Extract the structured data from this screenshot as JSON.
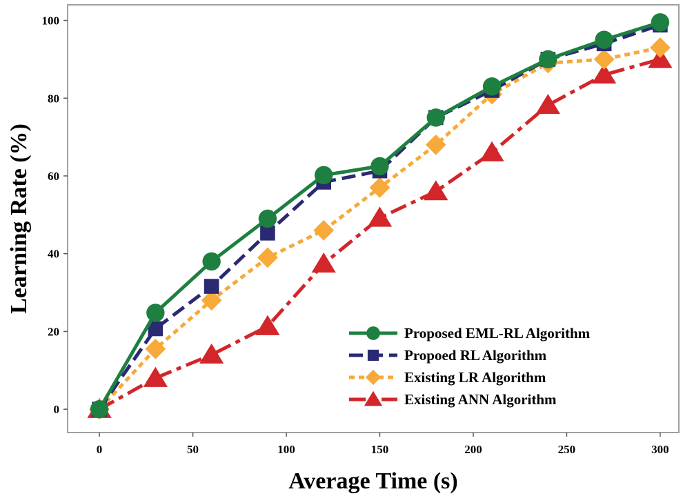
{
  "chart_data": {
    "type": "line",
    "title": "",
    "xlabel": "Average Time (s)",
    "ylabel": "Learning Rate (%)",
    "xlim": [
      -17,
      310
    ],
    "ylim": [
      -6,
      104
    ],
    "xticks": [
      0,
      50,
      100,
      150,
      200,
      250,
      300
    ],
    "yticks": [
      0,
      20,
      40,
      60,
      80,
      100
    ],
    "x": [
      0,
      30,
      60,
      90,
      120,
      150,
      180,
      210,
      240,
      270,
      300
    ],
    "legend_position": "bottom-right",
    "series": [
      {
        "name": "Proposed EML-RL Algorithm",
        "color": "#1e8040",
        "marker": "circle",
        "line_style": "solid",
        "values": [
          0,
          24.8,
          38,
          49,
          60.2,
          62.5,
          75,
          83,
          90,
          95,
          99.5
        ]
      },
      {
        "name": "Propoed RL Algorithm",
        "color": "#2a2a72",
        "marker": "square",
        "line_style": "dashed",
        "values": [
          0,
          20.7,
          31.6,
          45.3,
          58.4,
          61.3,
          75,
          82,
          90,
          94,
          98.8
        ]
      },
      {
        "name": "Existing LR Algorithm",
        "color": "#f7a93a",
        "marker": "diamond",
        "line_style": "dotted",
        "values": [
          0,
          15.5,
          28,
          39,
          46,
          57,
          68,
          81,
          89,
          90,
          93
        ]
      },
      {
        "name": "Existing ANN Algorithm",
        "color": "#d2262a",
        "marker": "triangle",
        "line_style": "dashdot",
        "values": [
          0,
          8,
          14,
          21.3,
          37.4,
          49.2,
          56,
          66,
          78.2,
          86,
          90
        ]
      }
    ]
  }
}
